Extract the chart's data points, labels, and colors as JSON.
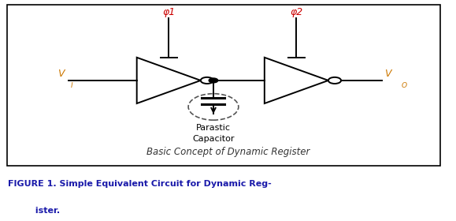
{
  "fig_width": 5.79,
  "fig_height": 2.8,
  "dpi": 100,
  "bg_color": "#ffffff",
  "circuit_color": "#000000",
  "phi_color": "#cc0000",
  "label_color": "#cc7700",
  "caption_color": "#1a1aaa",
  "figure_label": "Basic Concept of Dynamic Register",
  "phi1_label": "φ1",
  "phi2_label": "φ2",
  "parasitic_label": "Parastic\nCapacitor",
  "caption_line1": "FIGURE 1. Simple Equivalent Circuit for Dynamic Reg-",
  "caption_line2": "         ister."
}
